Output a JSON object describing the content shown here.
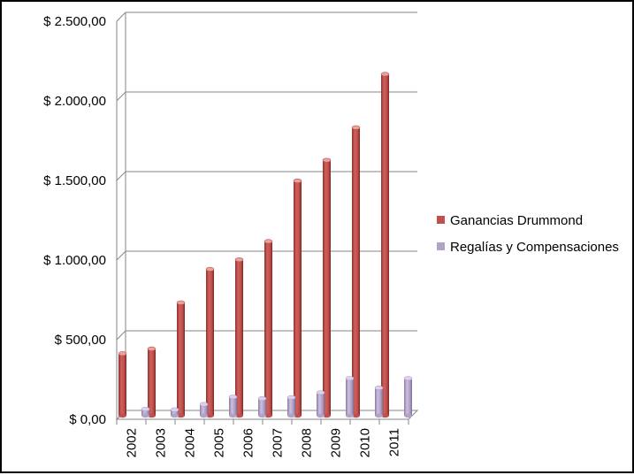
{
  "chart_data": {
    "type": "bar",
    "categories": [
      "2002",
      "2003",
      "2004",
      "2005",
      "2006",
      "2007",
      "2008",
      "2009",
      "2010",
      "2011"
    ],
    "series": [
      {
        "name": "Ganancias Drummond",
        "values": [
          390,
          420,
          710,
          920,
          980,
          1095,
          1475,
          1605,
          1810,
          2145
        ],
        "color": "#c0504d"
      },
      {
        "name": "Regalías y Compensaciones",
        "values": [
          42,
          38,
          72,
          118,
          108,
          115,
          145,
          235,
          175,
          235
        ],
        "color": "#b3a2c7"
      }
    ],
    "y_ticks": [
      "$ 0,00",
      "$ 500,00",
      "$ 1.000,00",
      "$ 1.500,00",
      "$ 2.000,00",
      "$ 2.500,00"
    ],
    "ylim": [
      0,
      2500
    ],
    "grid": true,
    "legend_position": "right"
  }
}
